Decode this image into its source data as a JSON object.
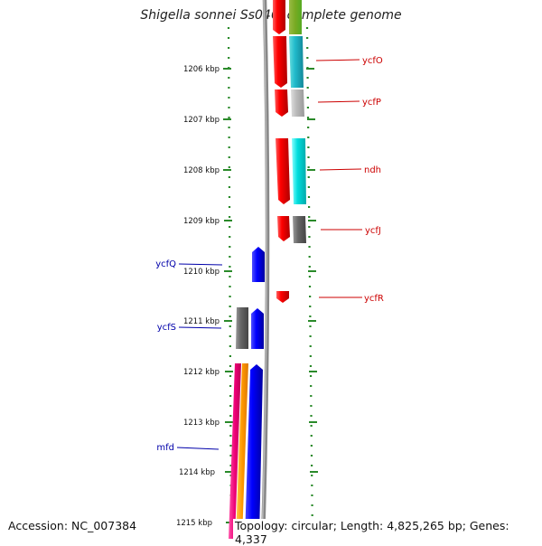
{
  "title": "Shigella sonnei Ss046, complete genome",
  "accession": "Accession: NC_007384",
  "topology": "Topology: circular; Length: 4,825,265 bp; Genes: 4,337",
  "colors": {
    "forward_label": "#cc0000",
    "reverse_label": "#0000aa",
    "tick": "#2a8a2a"
  },
  "scale_labels": [
    "1206 kbp",
    "1207 kbp",
    "1208 kbp",
    "1209 kbp",
    "1210 kbp",
    "1211 kbp",
    "1212 kbp",
    "1213 kbp",
    "1214 kbp",
    "1215 kbp"
  ],
  "gene_labels": {
    "right": [
      "ycfO",
      "ycfP",
      "ndh",
      "ycfJ",
      "ycfR"
    ],
    "left": [
      "ycfQ",
      "ycfS",
      "mfd"
    ]
  }
}
